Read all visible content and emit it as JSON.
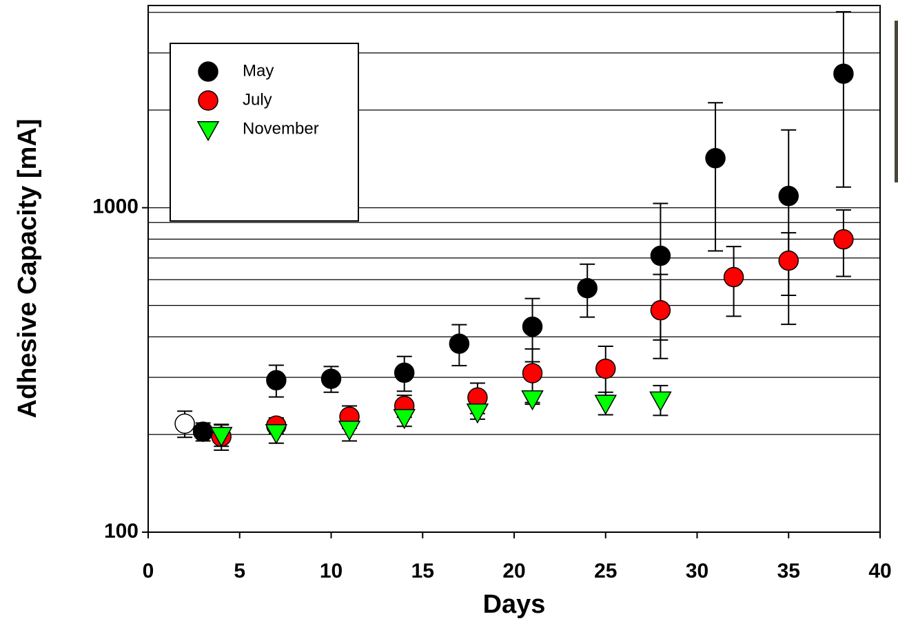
{
  "chart_data": {
    "type": "scatter",
    "x_label": "Days",
    "y_label": "Adhesive Capacity [mA]",
    "xlim": [
      0,
      40
    ],
    "xticks": [
      0,
      5,
      10,
      15,
      20,
      25,
      30,
      35,
      40
    ],
    "ylim": [
      100,
      4200
    ],
    "yticks": [
      100,
      1000
    ],
    "ygrid": [
      200,
      300,
      400,
      500,
      600,
      700,
      800,
      900,
      1000,
      2000,
      3000,
      4000
    ],
    "log_y": true,
    "legend": "upper left",
    "series": [
      {
        "name": "May",
        "color": "#000000",
        "marker": "circle",
        "x": [
          3,
          7,
          10,
          14,
          17,
          21,
          24,
          28,
          31,
          35,
          38
        ],
        "values": [
          204,
          294,
          297,
          310,
          381,
          430,
          565,
          711,
          1421,
          1087,
          2588
        ],
        "errors": [
          13,
          33,
          27,
          38,
          55,
          95,
          105,
          320,
          685,
          650,
          1430
        ]
      },
      {
        "name": "July",
        "color": "#ff0000",
        "marker": "circle",
        "x": [
          4,
          7,
          11,
          14,
          18,
          21,
          25,
          28,
          32,
          35,
          38
        ],
        "values": [
          197,
          213,
          227,
          245,
          260,
          309,
          319,
          483,
          611,
          687,
          799
        ],
        "errors": [
          18,
          12,
          18,
          19,
          28,
          58,
          55,
          140,
          148,
          150,
          185
        ]
      },
      {
        "name": "November",
        "color": "#00ff00",
        "marker": "triangle-down",
        "x": [
          4,
          7,
          11,
          14,
          18,
          21,
          25,
          28
        ],
        "values": [
          199,
          203,
          208,
          226,
          235,
          258,
          250,
          256
        ],
        "errors": [
          15,
          15,
          17,
          14,
          12,
          10,
          20,
          27
        ]
      },
      {
        "color": "#ffffff",
        "marker": "circle",
        "x": [
          2
        ],
        "values": [
          216
        ],
        "errors": [
          20
        ]
      }
    ]
  }
}
